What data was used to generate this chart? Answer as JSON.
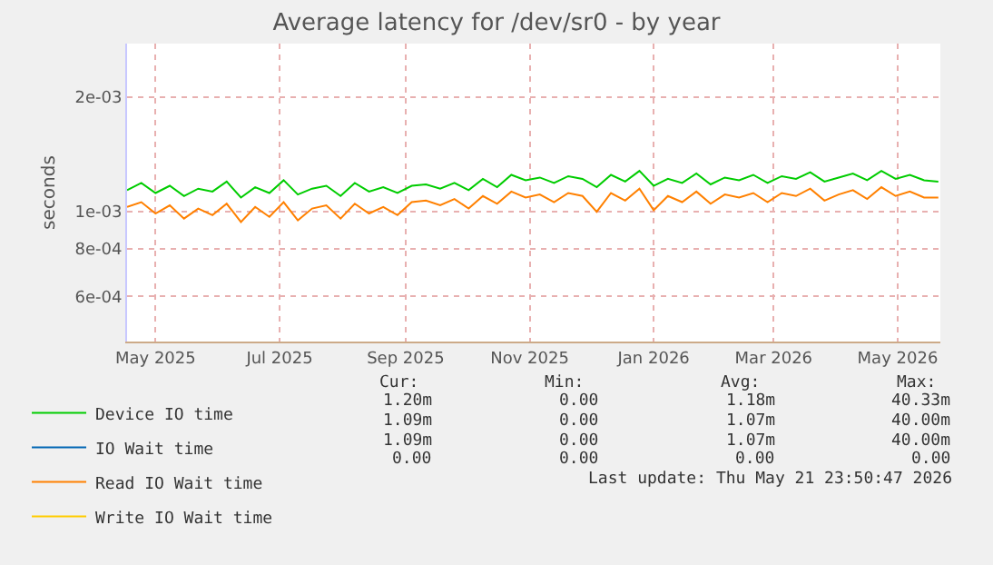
{
  "chart_data": {
    "type": "line",
    "title": "Average latency for /dev/sr0 - by year",
    "ylabel": "seconds",
    "x": [
      "2025-04-17",
      "2025-04-24",
      "2025-05-01",
      "2025-05-08",
      "2025-05-15",
      "2025-05-22",
      "2025-05-29",
      "2025-06-05",
      "2025-06-12",
      "2025-06-19",
      "2025-06-26",
      "2025-07-03",
      "2025-07-10",
      "2025-07-17",
      "2025-07-24",
      "2025-07-31",
      "2025-08-07",
      "2025-08-14",
      "2025-08-21",
      "2025-08-28",
      "2025-09-04",
      "2025-09-11",
      "2025-09-18",
      "2025-09-25",
      "2025-10-02",
      "2025-10-09",
      "2025-10-16",
      "2025-10-23",
      "2025-10-30",
      "2025-11-06",
      "2025-11-13",
      "2025-11-20",
      "2025-11-27",
      "2025-12-04",
      "2025-12-11",
      "2025-12-18",
      "2025-12-25",
      "2026-01-01",
      "2026-01-08",
      "2026-01-15",
      "2026-01-22",
      "2026-01-29",
      "2026-02-05",
      "2026-02-12",
      "2026-02-19",
      "2026-02-26",
      "2026-03-05",
      "2026-03-12",
      "2026-03-19",
      "2026-03-26",
      "2026-04-02",
      "2026-04-09",
      "2026-04-16",
      "2026-04-23",
      "2026-04-30",
      "2026-05-07",
      "2026-05-14",
      "2026-05-21"
    ],
    "series": [
      {
        "name": "Device IO time",
        "color": "#00cc00",
        "values": [
          0.00114,
          0.00119,
          0.00112,
          0.00117,
          0.0011,
          0.00115,
          0.00113,
          0.0012,
          0.00109,
          0.00116,
          0.00112,
          0.00121,
          0.00111,
          0.00115,
          0.00117,
          0.0011,
          0.00119,
          0.00113,
          0.00116,
          0.00112,
          0.00117,
          0.00118,
          0.00115,
          0.00119,
          0.00114,
          0.00122,
          0.00116,
          0.00125,
          0.00121,
          0.00123,
          0.00119,
          0.00124,
          0.00122,
          0.00116,
          0.00125,
          0.0012,
          0.00128,
          0.00117,
          0.00122,
          0.00119,
          0.00126,
          0.00118,
          0.00123,
          0.00121,
          0.00125,
          0.00119,
          0.00124,
          0.00122,
          0.00127,
          0.0012,
          0.00123,
          0.00126,
          0.00121,
          0.00128,
          0.00122,
          0.00125,
          0.00121,
          0.0012
        ]
      },
      {
        "name": "IO Wait time",
        "color": "#0066b3",
        "values": [
          null,
          null,
          null,
          null,
          null,
          null,
          null,
          null,
          null,
          null,
          null,
          null,
          null,
          null,
          null,
          null,
          null,
          null,
          null,
          null,
          null,
          null,
          null,
          null,
          null,
          null,
          null,
          null,
          null,
          null,
          null,
          null,
          null,
          null,
          null,
          null,
          null,
          null,
          null,
          null,
          null,
          null,
          null,
          null,
          null,
          null,
          null,
          null,
          null,
          null,
          null,
          null,
          null,
          null,
          null,
          null,
          null,
          null
        ]
      },
      {
        "name": "Read IO Wait time",
        "color": "#ff8000",
        "values": [
          0.00103,
          0.00106,
          0.00099,
          0.00104,
          0.00096,
          0.00102,
          0.00098,
          0.00105,
          0.00094,
          0.00103,
          0.00097,
          0.00106,
          0.00095,
          0.00102,
          0.00104,
          0.00096,
          0.00105,
          0.00099,
          0.00103,
          0.00098,
          0.00106,
          0.00107,
          0.00104,
          0.00108,
          0.00102,
          0.0011,
          0.00105,
          0.00113,
          0.00109,
          0.00111,
          0.00106,
          0.00112,
          0.0011,
          0.001,
          0.00112,
          0.00107,
          0.00115,
          0.00101,
          0.0011,
          0.00106,
          0.00113,
          0.00105,
          0.00111,
          0.00109,
          0.00112,
          0.00106,
          0.00112,
          0.0011,
          0.00115,
          0.00107,
          0.00111,
          0.00114,
          0.00108,
          0.00116,
          0.0011,
          0.00113,
          0.00109,
          0.00109
        ]
      },
      {
        "name": "Write IO Wait time",
        "color": "#ffcc00",
        "values": [
          null,
          null,
          null,
          null,
          null,
          null,
          null,
          null,
          null,
          null,
          null,
          null,
          null,
          null,
          null,
          null,
          null,
          null,
          null,
          null,
          null,
          null,
          null,
          null,
          null,
          null,
          null,
          null,
          null,
          null,
          null,
          null,
          null,
          null,
          null,
          null,
          null,
          null,
          null,
          null,
          null,
          null,
          null,
          null,
          null,
          null,
          null,
          null,
          null,
          null,
          null,
          null,
          null,
          null,
          null,
          null,
          null,
          null
        ]
      }
    ],
    "log": "y",
    "xlim": [
      "2025-04-17",
      "2026-05-22"
    ],
    "xticks": [
      {
        "value": "2025-05-01",
        "label": "May 2025"
      },
      {
        "value": "2025-07-01",
        "label": "Jul 2025"
      },
      {
        "value": "2025-09-01",
        "label": "Sep 2025"
      },
      {
        "value": "2025-11-01",
        "label": "Nov 2025"
      },
      {
        "value": "2026-01-01",
        "label": "Jan 2026"
      },
      {
        "value": "2026-03-01",
        "label": "Mar 2026"
      },
      {
        "value": "2026-05-01",
        "label": "May 2026"
      }
    ],
    "ylim": [
      0.000457,
      0.00276
    ],
    "yticks": [
      {
        "value": 0.0006,
        "label": "6e-04"
      },
      {
        "value": 0.0008,
        "label": "8e-04"
      },
      {
        "value": 0.001,
        "label": "1e-03"
      },
      {
        "value": 0.002,
        "label": "2e-03"
      }
    ],
    "grid": true,
    "legend": "bottom left",
    "line_style": "solid",
    "marker": "none",
    "annotations": [
      "Cur:",
      "Min:",
      "Avg:",
      "Max:",
      "1.20m",
      "0.00",
      "1.18m",
      "40.33m",
      "1.09m",
      "0.00",
      "1.07m",
      "40.00m",
      "1.09m",
      "0.00",
      "1.07m",
      "40.00m",
      "0.00",
      "0.00",
      "0.00",
      "0.00",
      "Last update: Thu May 21 23:50:47 2026"
    ]
  }
}
